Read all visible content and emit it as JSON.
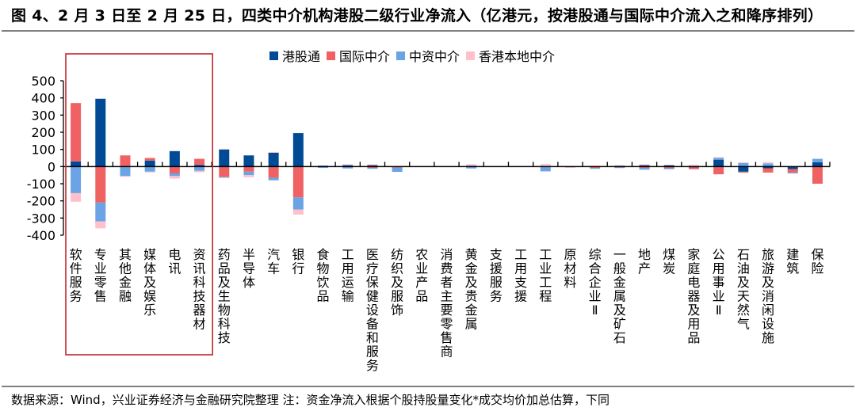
{
  "header": {
    "title": "图 4、2 月 3 日至 2 月 25 日，四类中介机构港股二级行业净流入（亿港元，按港股通与国际中介流入之和降序排列）"
  },
  "footer": {
    "note": "数据来源：Wind，兴业证券经济与金融研究院整理   注：资金净流入根据个股持股量变化*成交均价加总估算，下同"
  },
  "highlight": {
    "description": "red-outlined box around first six categories",
    "color": "#C0282D",
    "categories_covered": [
      "软件服务",
      "专业零售",
      "其他金融",
      "媒体及娱乐",
      "电讯",
      "资讯科技器材"
    ]
  },
  "chart_data": {
    "type": "bar",
    "stacked": true,
    "title": "图 4、2 月 3 日至 2 月 25 日，四类中介机构港股二级行业净流入（亿港元，按港股通与国际中介流入之和降序排列）",
    "xlabel": "",
    "ylabel": "",
    "ylim": [
      -400,
      500
    ],
    "yticks": [
      500,
      400,
      300,
      200,
      100,
      0,
      -100,
      -200,
      -300,
      -400
    ],
    "legend_position": "top",
    "grid": false,
    "categories": [
      "软件服务",
      "专业零售",
      "其他金融",
      "媒体及娱乐",
      "电讯",
      "资讯科技器材",
      "药品及生物科技",
      "半导体",
      "汽车",
      "银行",
      "食物饮品",
      "工用运输",
      "医疗保健设备和服务",
      "纺织及服饰",
      "农业产品",
      "消费者主要零售商",
      "黄金及贵金属",
      "支援服务",
      "工用支援",
      "工业工程",
      "原材料",
      "综合企业Ⅱ",
      "一般金属及矿石",
      "地产",
      "煤炭",
      "家庭电器及用品",
      "公用事业Ⅱ",
      "石油及天然气",
      "旅游及消闲设施",
      "建筑",
      "保险"
    ],
    "series": [
      {
        "name": "港股通",
        "color": "#004A96",
        "values": [
          30,
          395,
          0,
          35,
          90,
          10,
          100,
          65,
          80,
          195,
          5,
          8,
          8,
          -3,
          0,
          0,
          5,
          0,
          0,
          -3,
          0,
          -3,
          5,
          8,
          8,
          -5,
          40,
          -30,
          -10,
          -15,
          25
        ]
      },
      {
        "name": "国际中介",
        "color": "#F06164",
        "values": [
          340,
          -210,
          65,
          15,
          -40,
          35,
          -60,
          -30,
          -65,
          -180,
          -3,
          -3,
          -8,
          -3,
          0,
          0,
          -3,
          0,
          0,
          0,
          -5,
          -5,
          -5,
          -8,
          -10,
          -10,
          -45,
          -5,
          -25,
          -20,
          -100
        ]
      },
      {
        "name": "中资中介",
        "color": "#6AA4E4",
        "values": [
          -155,
          -110,
          -55,
          -30,
          -15,
          -25,
          -5,
          -20,
          -15,
          -70,
          -5,
          -8,
          -5,
          -25,
          0,
          0,
          -8,
          0,
          0,
          -25,
          0,
          -5,
          -3,
          -10,
          -5,
          5,
          10,
          20,
          18,
          -5,
          20
        ]
      },
      {
        "name": "香港本地中介",
        "color": "#FFC0CB",
        "values": [
          -50,
          -40,
          -5,
          -3,
          -15,
          -8,
          3,
          -12,
          5,
          -30,
          0,
          5,
          5,
          0,
          0,
          0,
          8,
          0,
          0,
          15,
          3,
          5,
          3,
          5,
          0,
          5,
          5,
          5,
          8,
          0,
          0
        ]
      }
    ]
  }
}
